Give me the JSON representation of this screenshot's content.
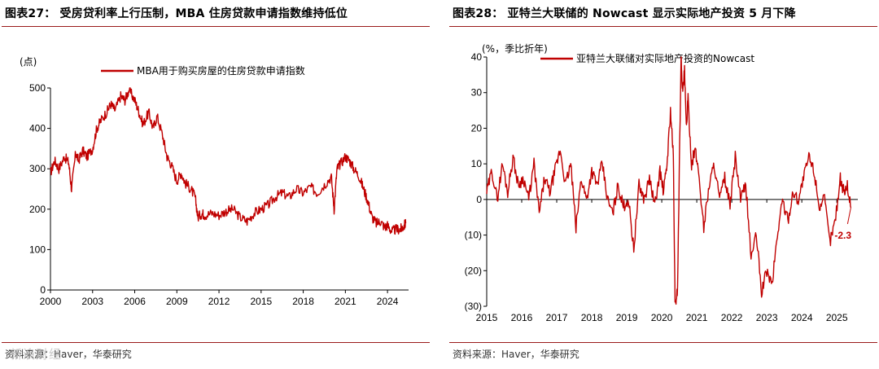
{
  "left": {
    "title": "图表27：  受房贷利率上行压制，MBA 住房贷款申请指数维持低位",
    "source": "资料来源：Haver，华泰研究",
    "watermark": "新浪财经",
    "chart_data": {
      "type": "line",
      "title": "MBA用于购买房屋的住房贷款申请指数",
      "ylabel": "(点)",
      "xlabel": "",
      "ylim": [
        0,
        500
      ],
      "yticks": [
        "0",
        "100",
        "200",
        "300",
        "400",
        "500"
      ],
      "xlim": [
        2000,
        2025.5
      ],
      "xticks": [
        "2000",
        "2003",
        "2006",
        "2009",
        "2012",
        "2015",
        "2018",
        "2021",
        "2024"
      ],
      "legend": "top-center",
      "color": "#c00000",
      "series": [
        {
          "name": "MBA用于购买房屋的住房贷款申请指数",
          "x": [
            2000.0,
            2000.3,
            2000.6,
            2001.0,
            2001.3,
            2001.5,
            2001.8,
            2002.0,
            2002.3,
            2002.6,
            2003.0,
            2003.3,
            2003.6,
            2004.0,
            2004.3,
            2004.6,
            2005.0,
            2005.3,
            2005.6,
            2006.0,
            2006.3,
            2006.6,
            2007.0,
            2007.3,
            2007.6,
            2008.0,
            2008.3,
            2008.6,
            2009.0,
            2009.3,
            2009.6,
            2010.0,
            2010.3,
            2010.5,
            2010.8,
            2011.0,
            2011.5,
            2012.0,
            2012.5,
            2013.0,
            2013.5,
            2014.0,
            2014.5,
            2015.0,
            2015.5,
            2016.0,
            2016.5,
            2017.0,
            2017.5,
            2018.0,
            2018.5,
            2019.0,
            2019.5,
            2020.0,
            2020.2,
            2020.4,
            2020.6,
            2021.0,
            2021.3,
            2021.6,
            2022.0,
            2022.3,
            2022.6,
            2022.9,
            2023.2,
            2023.5,
            2023.8,
            2024.0,
            2024.3,
            2024.6,
            2024.9,
            2025.1,
            2025.3
          ],
          "values": [
            290,
            320,
            300,
            330,
            315,
            250,
            340,
            320,
            345,
            330,
            350,
            400,
            420,
            440,
            460,
            445,
            480,
            470,
            495,
            470,
            440,
            410,
            440,
            400,
            430,
            380,
            330,
            310,
            270,
            290,
            265,
            250,
            230,
            180,
            190,
            185,
            190,
            185,
            195,
            200,
            180,
            170,
            190,
            200,
            210,
            230,
            240,
            230,
            250,
            240,
            255,
            240,
            260,
            280,
            200,
            300,
            310,
            330,
            320,
            300,
            280,
            250,
            220,
            180,
            165,
            170,
            155,
            160,
            145,
            150,
            150,
            155,
            165
          ]
        }
      ]
    }
  },
  "right": {
    "title": "图表28：  亚特兰大联储的 Nowcast 显示实际地产投资 5 月下降",
    "source": "资料来源：Haver，华泰研究",
    "chart_data": {
      "type": "line",
      "title": "亚特兰大联储对实际地产投资的Nowcast",
      "ylabel": "(%，季比折年)",
      "xlabel": "",
      "ylim": [
        -30,
        40
      ],
      "yticks": [
        "(30)",
        "(20)",
        "(10)",
        "0",
        "10",
        "20",
        "30",
        "40"
      ],
      "xlim": [
        2015.0,
        2025.6
      ],
      "xticks": [
        "2015",
        "2016",
        "2017",
        "2018",
        "2019",
        "2020",
        "2021",
        "2022",
        "2023",
        "2024",
        "2025"
      ],
      "legend": "top-center",
      "color": "#c00000",
      "annotation": "-2.3",
      "series": [
        {
          "name": "亚特兰大联储对实际地产投资的Nowcast",
          "x": [
            2015.0,
            2015.15,
            2015.3,
            2015.45,
            2015.6,
            2015.75,
            2015.9,
            2016.05,
            2016.2,
            2016.35,
            2016.5,
            2016.65,
            2016.8,
            2016.95,
            2017.1,
            2017.25,
            2017.4,
            2017.55,
            2017.7,
            2017.85,
            2018.0,
            2018.15,
            2018.3,
            2018.45,
            2018.6,
            2018.75,
            2018.9,
            2019.05,
            2019.2,
            2019.35,
            2019.5,
            2019.65,
            2019.8,
            2019.95,
            2020.05,
            2020.15,
            2020.25,
            2020.33,
            2020.38,
            2020.45,
            2020.55,
            2020.6,
            2020.65,
            2020.7,
            2020.75,
            2020.85,
            2020.95,
            2021.05,
            2021.2,
            2021.35,
            2021.5,
            2021.65,
            2021.8,
            2021.95,
            2022.1,
            2022.25,
            2022.4,
            2022.55,
            2022.7,
            2022.85,
            2023.0,
            2023.15,
            2023.3,
            2023.45,
            2023.6,
            2023.75,
            2023.9,
            2024.05,
            2024.2,
            2024.35,
            2024.5,
            2024.65,
            2024.8,
            2024.95,
            2025.1,
            2025.2,
            2025.3,
            2025.4
          ],
          "values": [
            2,
            8,
            0,
            10,
            2,
            12,
            4,
            6,
            0,
            10,
            -4,
            6,
            2,
            8,
            14,
            4,
            10,
            -8,
            6,
            0,
            8,
            4,
            10,
            0,
            -4,
            4,
            -2,
            0,
            -14,
            4,
            0,
            6,
            -2,
            8,
            2,
            10,
            25,
            12,
            -30,
            -25,
            40,
            30,
            36,
            20,
            28,
            10,
            14,
            8,
            -8,
            4,
            10,
            0,
            6,
            -2,
            12,
            0,
            4,
            -16,
            -10,
            -26,
            -20,
            -24,
            -10,
            0,
            -6,
            2,
            0,
            6,
            12,
            8,
            -2,
            0,
            -12,
            -6,
            6,
            2,
            4,
            -2.3
          ]
        }
      ]
    }
  }
}
